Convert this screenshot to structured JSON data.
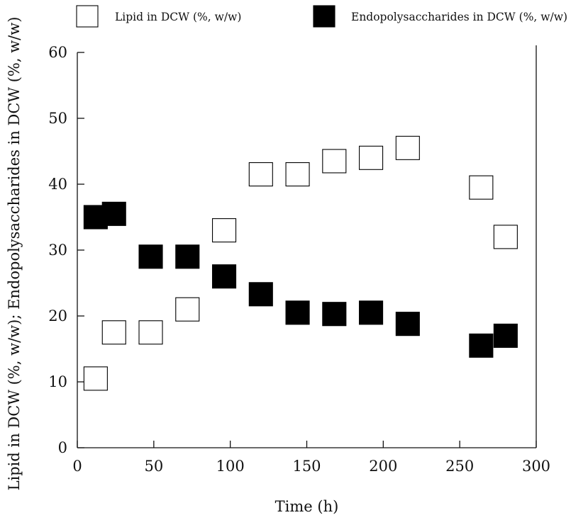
{
  "chart_data": {
    "type": "scatter",
    "title": "",
    "xlabel": "Time (h)",
    "ylabel": "Lipid in DCW (%, w/w); Endopolysaccharides in DCW (%, w/w)",
    "xlim": [
      0,
      300
    ],
    "ylim": [
      0,
      60
    ],
    "xticks": [
      0,
      50,
      100,
      150,
      200,
      250,
      300
    ],
    "yticks": [
      0,
      10,
      20,
      30,
      40,
      50,
      60
    ],
    "grid": false,
    "legend_position": "top",
    "series": [
      {
        "name": "Lipid in DCW (%, w/w)",
        "marker": "open-square",
        "color": "#000000",
        "x": [
          12,
          24,
          48,
          72,
          96,
          120,
          144,
          168,
          192,
          216,
          264,
          280
        ],
        "y": [
          10.5,
          17.5,
          17.5,
          21,
          33,
          41.5,
          41.5,
          43.5,
          44,
          45.5,
          39.5,
          32
        ]
      },
      {
        "name": "Endopolysaccharides in DCW (%, w/w)",
        "marker": "filled-square",
        "color": "#000000",
        "x": [
          12,
          24,
          48,
          72,
          96,
          120,
          144,
          168,
          192,
          216,
          264,
          280
        ],
        "y": [
          35,
          35.5,
          29,
          29,
          26,
          23.3,
          20.5,
          20.3,
          20.5,
          18.8,
          15.5,
          17
        ]
      }
    ]
  }
}
